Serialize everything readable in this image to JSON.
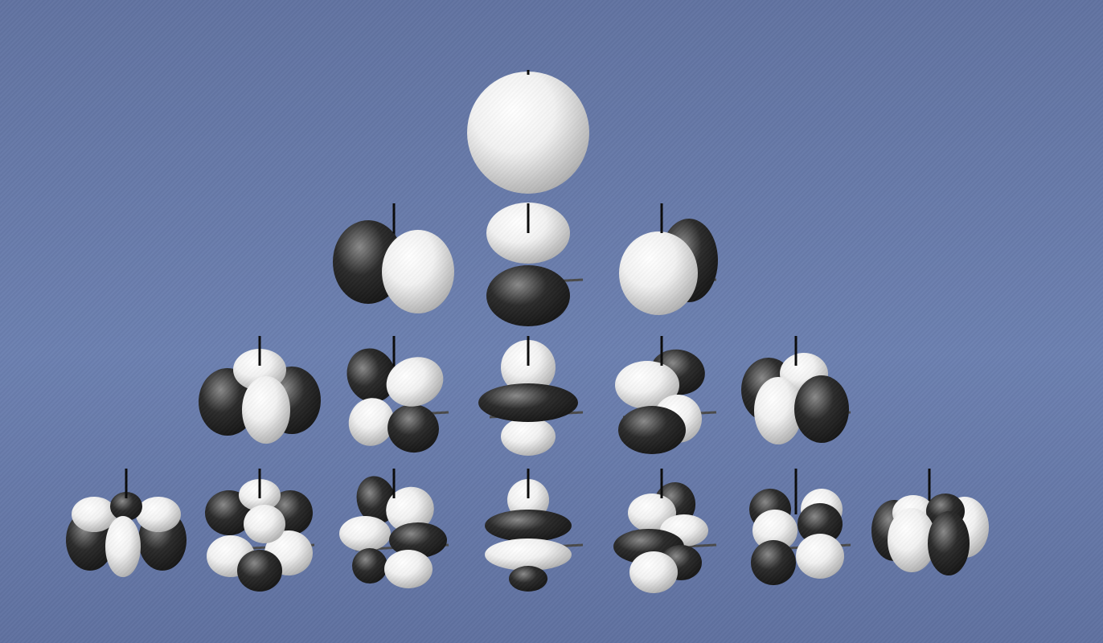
{
  "diagram": {
    "background": "#6879a8",
    "lobe_colors": {
      "positive": "#f2f2f2",
      "negative": "#2b2b2b"
    },
    "rows": [
      {
        "l": 0,
        "orbitals": [
          {
            "m": 0
          }
        ]
      },
      {
        "l": 1,
        "orbitals": [
          {
            "m": -1
          },
          {
            "m": 0
          },
          {
            "m": 1
          }
        ]
      },
      {
        "l": 2,
        "orbitals": [
          {
            "m": -2
          },
          {
            "m": -1
          },
          {
            "m": 0
          },
          {
            "m": 1
          },
          {
            "m": 2
          }
        ]
      },
      {
        "l": 3,
        "orbitals": [
          {
            "m": -3
          },
          {
            "m": -2
          },
          {
            "m": -1
          },
          {
            "m": 0
          },
          {
            "m": 1
          },
          {
            "m": 2
          },
          {
            "m": 3
          }
        ]
      }
    ]
  }
}
